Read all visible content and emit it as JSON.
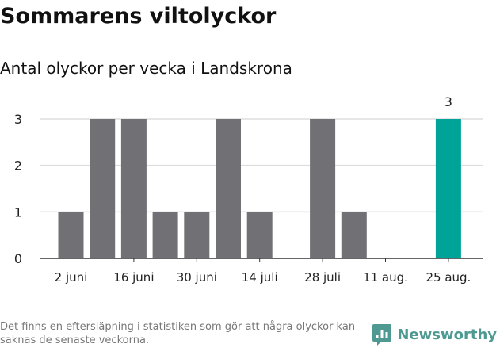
{
  "title": "Sommarens viltolyckor",
  "subtitle": "Antal olyckor per vecka i Landskrona",
  "footnote": "Det finns en eftersläpning i statistiken som gör att några olyckor kan saknas de senaste veckorna.",
  "brand": {
    "name": "Newsworthy",
    "icon": "newsworthy-logo-icon",
    "color": "#4e9a92"
  },
  "colors": {
    "bar": "#717075",
    "highlight": "#00a398",
    "grid": "#dddddd",
    "axis": "#333333"
  },
  "chart_data": {
    "type": "bar",
    "title": "Antal olyckor per vecka i Landskrona",
    "xlabel": "",
    "ylabel": "",
    "ylim": [
      0,
      3
    ],
    "yticks": [
      0,
      1,
      2,
      3
    ],
    "grid": true,
    "bars": [
      1,
      3,
      3,
      1,
      1,
      3,
      1,
      0,
      3,
      1,
      0,
      0,
      3
    ],
    "xtick_labels": [
      "2 juni",
      "16 juni",
      "30 juni",
      "14 juli",
      "28 juli",
      "11 aug.",
      "25 aug."
    ],
    "highlight_index": 12,
    "highlight_label": "3"
  }
}
